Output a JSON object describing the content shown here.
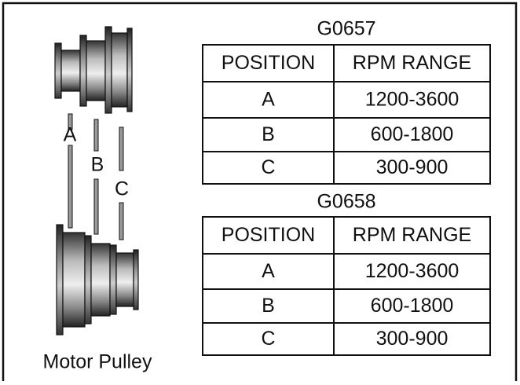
{
  "pulley_labels": [
    "A",
    "B",
    "C"
  ],
  "caption": "Motor Pulley",
  "tables": [
    {
      "title": "G0657",
      "columns": [
        "POSITION",
        "RPM RANGE"
      ],
      "rows": [
        [
          "A",
          "1200-3600"
        ],
        [
          "B",
          "600-1800"
        ],
        [
          "C",
          "300-900"
        ]
      ]
    },
    {
      "title": "G0658",
      "columns": [
        "POSITION",
        "RPM RANGE"
      ],
      "rows": [
        [
          "A",
          "1200-3600"
        ],
        [
          "B",
          "600-1800"
        ],
        [
          "C",
          "300-900"
        ]
      ]
    }
  ]
}
